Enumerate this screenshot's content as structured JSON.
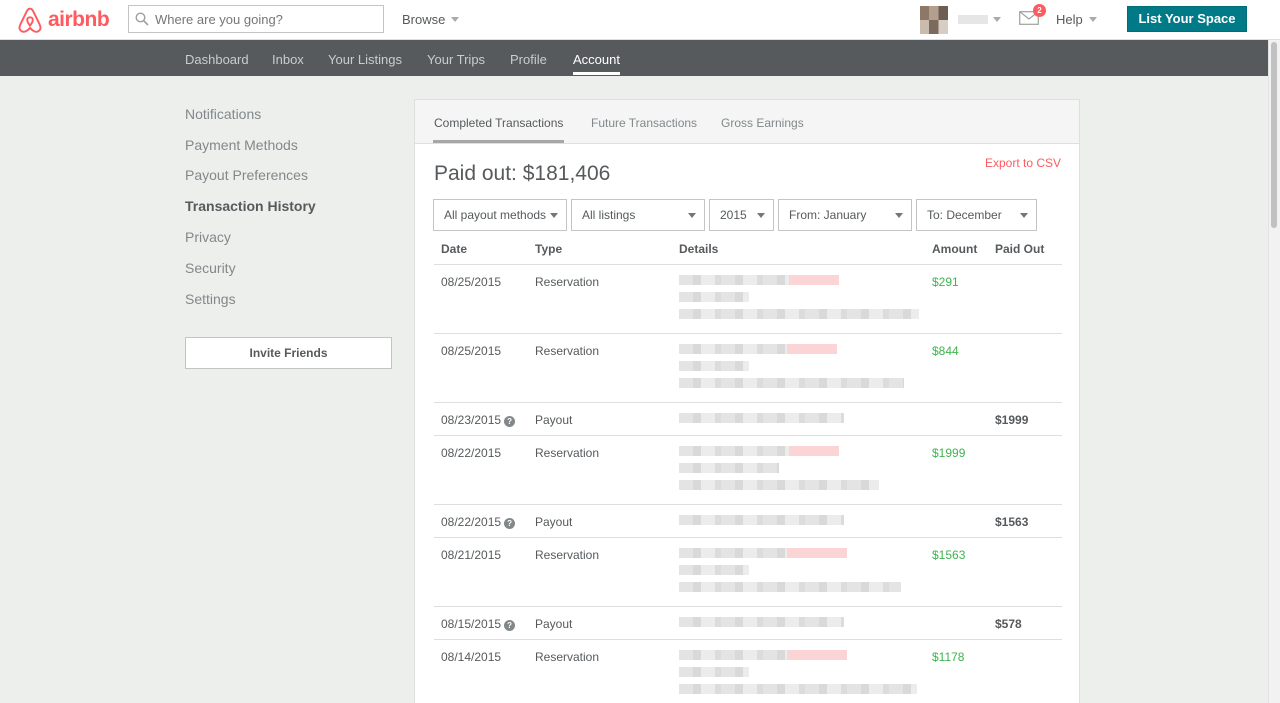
{
  "header": {
    "logo_text": "airbnb",
    "search_placeholder": "Where are you going?",
    "browse_label": "Browse",
    "mail_badge_count": "2",
    "help_label": "Help",
    "list_space_label": "List Your Space",
    "brand_color": "#ff5a5f",
    "accent_color": "#007a87"
  },
  "subnav": {
    "items": [
      {
        "label": "Dashboard"
      },
      {
        "label": "Inbox"
      },
      {
        "label": "Your Listings"
      },
      {
        "label": "Your Trips"
      },
      {
        "label": "Profile"
      },
      {
        "label": "Account",
        "active": true
      }
    ]
  },
  "sidemenu": {
    "items": [
      {
        "label": "Notifications"
      },
      {
        "label": "Payment Methods"
      },
      {
        "label": "Payout Preferences"
      },
      {
        "label": "Transaction History",
        "active": true
      },
      {
        "label": "Privacy"
      },
      {
        "label": "Security"
      },
      {
        "label": "Settings"
      }
    ],
    "invite_label": "Invite Friends"
  },
  "panel": {
    "tabs": [
      {
        "label": "Completed Transactions",
        "active": true
      },
      {
        "label": "Future Transactions"
      },
      {
        "label": "Gross Earnings"
      }
    ],
    "paid_out_label": "Paid out: $181,406",
    "export_label": "Export to CSV",
    "filters": {
      "payout_method": "All payout methods",
      "listings": "All listings",
      "year": "2015",
      "from": "From: January",
      "to": "To: December"
    },
    "table": {
      "columns": {
        "date": "Date",
        "type": "Type",
        "details": "Details",
        "amount": "Amount",
        "paid_out": "Paid Out"
      },
      "rows": [
        {
          "date": "08/25/2015",
          "type": "Reservation",
          "amount": "$291",
          "paid_out": ""
        },
        {
          "date": "08/25/2015",
          "type": "Reservation",
          "amount": "$844",
          "paid_out": ""
        },
        {
          "date": "08/23/2015",
          "type": "Payout",
          "amount": "",
          "paid_out": "$1999"
        },
        {
          "date": "08/22/2015",
          "type": "Reservation",
          "amount": "$1999",
          "paid_out": ""
        },
        {
          "date": "08/22/2015",
          "type": "Payout",
          "amount": "",
          "paid_out": "$1563"
        },
        {
          "date": "08/21/2015",
          "type": "Reservation",
          "amount": "$1563",
          "paid_out": ""
        },
        {
          "date": "08/15/2015",
          "type": "Payout",
          "amount": "",
          "paid_out": "$578"
        },
        {
          "date": "08/14/2015",
          "type": "Reservation",
          "amount": "$1178",
          "paid_out": ""
        }
      ]
    }
  }
}
